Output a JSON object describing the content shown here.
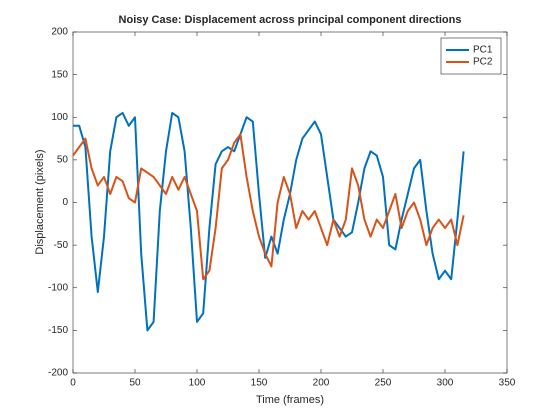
{
  "chart_data": {
    "type": "line",
    "title": "Noisy Case: Displacement across principal component directions",
    "xlabel": "Time (frames)",
    "ylabel": "Displacement (pixels)",
    "x": [
      0,
      5,
      10,
      15,
      20,
      25,
      30,
      35,
      40,
      45,
      50,
      55,
      60,
      65,
      70,
      75,
      80,
      85,
      90,
      95,
      100,
      105,
      110,
      115,
      120,
      125,
      130,
      135,
      140,
      145,
      150,
      155,
      160,
      165,
      170,
      175,
      180,
      185,
      190,
      195,
      200,
      205,
      210,
      215,
      220,
      225,
      230,
      235,
      240,
      245,
      250,
      255,
      260,
      265,
      270,
      275,
      280,
      285,
      290,
      295,
      300,
      305,
      310,
      315
    ],
    "series": [
      {
        "name": "PC1",
        "color": "#0072bd",
        "values": [
          90,
          90,
          65,
          -40,
          -105,
          -40,
          60,
          100,
          105,
          90,
          100,
          -60,
          -150,
          -140,
          -10,
          60,
          105,
          100,
          60,
          -30,
          -140,
          -130,
          -30,
          45,
          60,
          65,
          60,
          80,
          100,
          95,
          10,
          -65,
          -40,
          -60,
          -20,
          10,
          50,
          75,
          85,
          95,
          80,
          30,
          -20,
          -30,
          -40,
          -35,
          0,
          40,
          60,
          55,
          30,
          -50,
          -55,
          -20,
          10,
          40,
          50,
          -10,
          -60,
          -90,
          -80,
          -90,
          -20,
          60
        ]
      },
      {
        "name": "PC2",
        "color": "#d95319",
        "values": [
          55,
          65,
          75,
          40,
          20,
          30,
          10,
          30,
          25,
          5,
          0,
          40,
          35,
          30,
          20,
          10,
          30,
          15,
          30,
          10,
          -10,
          -90,
          -80,
          -30,
          40,
          50,
          70,
          80,
          30,
          -10,
          -40,
          -60,
          -75,
          0,
          30,
          10,
          -30,
          -10,
          -20,
          -10,
          -30,
          -50,
          -20,
          -40,
          -20,
          40,
          20,
          -20,
          -40,
          -20,
          -30,
          -10,
          10,
          -30,
          -10,
          0,
          -20,
          -50,
          -30,
          -20,
          -30,
          -20,
          -50,
          -15
        ]
      }
    ],
    "xlim": [
      0,
      350
    ],
    "xticks": [
      0,
      50,
      100,
      150,
      200,
      250,
      300,
      350
    ],
    "ylim": [
      -200,
      200
    ],
    "yticks": [
      -200,
      -150,
      -100,
      -50,
      0,
      50,
      100,
      150,
      200
    ],
    "legend": "upper right"
  }
}
